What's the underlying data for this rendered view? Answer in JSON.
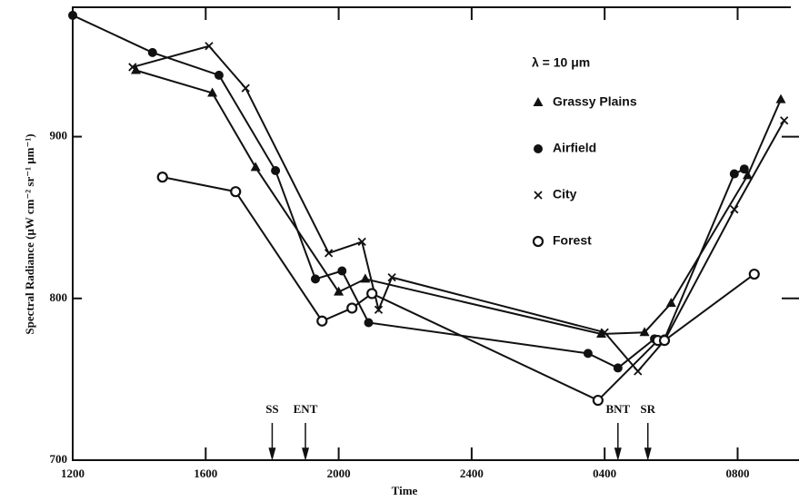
{
  "chart_data": {
    "type": "line",
    "xlabel": "Time",
    "ylabel": "Spectral Radiance (μW cm⁻² sr⁻¹ μm⁻¹)",
    "legend_title": "λ = 10 μm",
    "xlim": [
      0,
      21.6
    ],
    "xticks": [
      {
        "value": 0,
        "label": "1200"
      },
      {
        "value": 4,
        "label": "1600"
      },
      {
        "value": 8,
        "label": "2000"
      },
      {
        "value": 12,
        "label": "2400"
      },
      {
        "value": 16,
        "label": "0400"
      },
      {
        "value": 20,
        "label": "0800"
      }
    ],
    "ylim": [
      700,
      980
    ],
    "yticks": [
      700,
      800,
      900
    ],
    "series": [
      {
        "name": "Grassy Plains",
        "marker": "triangle",
        "color": "#111",
        "x": [
          1.9,
          4.2,
          5.5,
          8.0,
          8.8,
          15.9,
          17.2,
          18.0,
          20.3,
          21.3
        ],
        "values": [
          941,
          927,
          881,
          804,
          812,
          778,
          779,
          797,
          876,
          923
        ]
      },
      {
        "name": "Airfield",
        "marker": "circle",
        "color": "#111",
        "x": [
          0,
          2.4,
          4.4,
          6.1,
          7.3,
          8.1,
          8.9,
          15.5,
          16.4,
          17.5,
          17.8,
          19.9,
          20.2
        ],
        "values": [
          975,
          952,
          938,
          879,
          812,
          817,
          785,
          766,
          757,
          775,
          775,
          877,
          880
        ]
      },
      {
        "name": "City",
        "marker": "x",
        "color": "#111",
        "x": [
          1.8,
          4.1,
          5.2,
          7.7,
          8.7,
          9.2,
          9.6,
          16.0,
          17.0,
          17.8,
          19.9,
          21.4
        ],
        "values": [
          943,
          956,
          930,
          828,
          835,
          793,
          813,
          779,
          755,
          774,
          855,
          910
        ]
      },
      {
        "name": "Forest",
        "marker": "open-circle",
        "color": "#111",
        "x": [
          2.7,
          4.9,
          7.5,
          8.4,
          9.0,
          15.8,
          17.6,
          17.8,
          20.5
        ],
        "values": [
          875,
          866,
          786,
          794,
          803,
          737,
          774,
          774,
          815
        ]
      }
    ],
    "annotations": [
      {
        "text": "SS",
        "x": 6.0
      },
      {
        "text": "ENT",
        "x": 7.0
      },
      {
        "text": "BNT",
        "x": 16.4
      },
      {
        "text": "SR",
        "x": 17.3
      }
    ]
  }
}
